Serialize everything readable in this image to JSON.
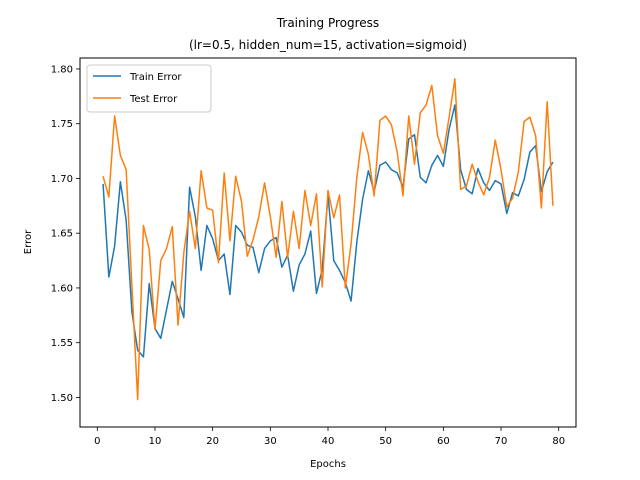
{
  "chart_data": {
    "type": "line",
    "title": "Training Progress",
    "subtitle": "(lr=0.5, hidden_num=15, activation=sigmoid)",
    "xlabel": "Epochs",
    "ylabel": "Error",
    "xlim": [
      -3,
      83
    ],
    "ylim": [
      1.473,
      1.81
    ],
    "xticks": [
      "0",
      "10",
      "20",
      "30",
      "40",
      "50",
      "60",
      "70",
      "80"
    ],
    "yticks": [
      "1.50",
      "1.55",
      "1.60",
      "1.65",
      "1.70",
      "1.75",
      "1.80"
    ],
    "grid": false,
    "legend_position": "top-left",
    "x": [
      1,
      2,
      3,
      4,
      5,
      6,
      7,
      8,
      9,
      10,
      11,
      12,
      13,
      14,
      15,
      16,
      17,
      18,
      19,
      20,
      21,
      22,
      23,
      24,
      25,
      26,
      27,
      28,
      29,
      30,
      31,
      32,
      33,
      34,
      35,
      36,
      37,
      38,
      39,
      40,
      41,
      42,
      43,
      44,
      45,
      46,
      47,
      48,
      49,
      50,
      51,
      52,
      53,
      54,
      55,
      56,
      57,
      58,
      59,
      60,
      61,
      62,
      63,
      64,
      65,
      66,
      67,
      68,
      69,
      70,
      71,
      72,
      73,
      74,
      75,
      76,
      77,
      78,
      79
    ],
    "series": [
      {
        "name": "Train Error",
        "color": "#1f77b4",
        "values": [
          1.695,
          1.61,
          1.638,
          1.697,
          1.662,
          1.578,
          1.543,
          1.537,
          1.604,
          1.563,
          1.554,
          1.58,
          1.606,
          1.59,
          1.573,
          1.692,
          1.665,
          1.616,
          1.657,
          1.645,
          1.625,
          1.631,
          1.594,
          1.657,
          1.651,
          1.639,
          1.637,
          1.614,
          1.636,
          1.643,
          1.646,
          1.619,
          1.63,
          1.597,
          1.621,
          1.631,
          1.652,
          1.595,
          1.617,
          1.685,
          1.625,
          1.616,
          1.605,
          1.588,
          1.642,
          1.681,
          1.707,
          1.688,
          1.712,
          1.715,
          1.708,
          1.705,
          1.692,
          1.736,
          1.74,
          1.701,
          1.696,
          1.712,
          1.721,
          1.711,
          1.745,
          1.767,
          1.708,
          1.69,
          1.686,
          1.709,
          1.696,
          1.689,
          1.698,
          1.695,
          1.668,
          1.687,
          1.684,
          1.699,
          1.724,
          1.73,
          1.688,
          1.706,
          1.715
        ]
      },
      {
        "name": "Test Error",
        "color": "#ff7f0e",
        "values": [
          1.702,
          1.683,
          1.757,
          1.721,
          1.708,
          1.602,
          1.498,
          1.657,
          1.635,
          1.562,
          1.625,
          1.636,
          1.656,
          1.566,
          1.632,
          1.67,
          1.636,
          1.707,
          1.673,
          1.671,
          1.623,
          1.705,
          1.643,
          1.702,
          1.679,
          1.629,
          1.644,
          1.665,
          1.696,
          1.665,
          1.628,
          1.679,
          1.628,
          1.67,
          1.636,
          1.689,
          1.657,
          1.686,
          1.601,
          1.689,
          1.664,
          1.685,
          1.6,
          1.64,
          1.701,
          1.742,
          1.722,
          1.684,
          1.753,
          1.757,
          1.749,
          1.724,
          1.684,
          1.757,
          1.713,
          1.76,
          1.767,
          1.785,
          1.739,
          1.723,
          1.756,
          1.791,
          1.69,
          1.693,
          1.713,
          1.697,
          1.685,
          1.701,
          1.735,
          1.708,
          1.674,
          1.682,
          1.706,
          1.752,
          1.756,
          1.739,
          1.673,
          1.77,
          1.675
        ]
      }
    ]
  }
}
